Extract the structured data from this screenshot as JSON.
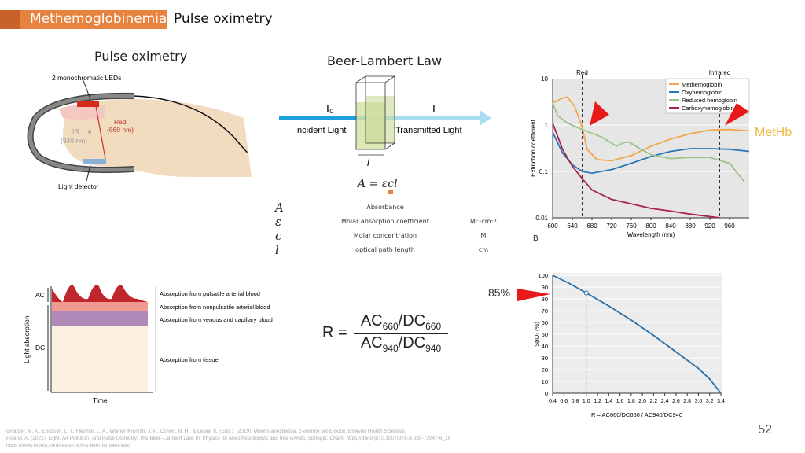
{
  "header": {
    "title": "Methemoglobinemia",
    "subtitle": "Pulse oximetry"
  },
  "pulse_ox": {
    "title": "Pulse oximetry",
    "leds_label": "2 monochromatic LEDs",
    "red_label": "Red",
    "red_nm": "(660 nm)",
    "ir_label": "IR",
    "ir_nm": "(940 nm)",
    "detector_label": "Light detector"
  },
  "beer_lambert": {
    "title": "Beer-Lambert Law",
    "i0": "I₀",
    "i": "I",
    "incident": "Incident Light",
    "transmitted": "Transmitted Light",
    "path": "l",
    "formula": "A = εcl",
    "table": [
      {
        "sym": "A",
        "desc": "Absorbance",
        "unit": ""
      },
      {
        "sym": "ε",
        "desc": "Molar absorption coefficient",
        "unit": "M⁻¹cm⁻¹"
      },
      {
        "sym": "c",
        "desc": "Molar concentration",
        "unit": "M"
      },
      {
        "sym": "l",
        "desc": "optical path length",
        "unit": "cm"
      }
    ]
  },
  "absorption": {
    "ac": "AC",
    "dc": "DC",
    "ylabel": "Light absorption",
    "xlabel": "Time",
    "layers": [
      "Absorption from pulsatile arterial blood",
      "Absorption from nonpulsatile arterial blood",
      "Absorption from venous and capillary blood",
      "Absorption from tissue"
    ]
  },
  "r_formula": {
    "r": "R =",
    "num": "AC",
    "num_sub": "660",
    "num2": "/DC",
    "num2_sub": "660",
    "den": "AC",
    "den_sub": "940",
    "den2": "/DC",
    "den2_sub": "940"
  },
  "annotations": {
    "methb": "MetHb",
    "pct": "85%",
    "panel": "B",
    "colors": {
      "accent": "#e8823f",
      "arrow": "#e8191a",
      "methb": "#f0b63c"
    }
  },
  "references": [
    "Gropper, M. A., Eriksson, L. I., Fleisher, L. A., Wiener-Kronish, J. P., Cohen, N. H., & Leslie, K. (Eds.). (2019). Miller's anesthesia, 2-volume set E-book. Elsevier Health Sciences.",
    "Pisano, A. (2021). Light, Air Pollution, and Pulse Oximetry: The Beer–Lambert Law. In: Physics for Anesthesiologists and Intensivists. Springer, Cham. https://doi.org/10.1007/978-3-030-72047-6_16",
    "https://www.edinst.com/resource/the-beer-lambert-law/"
  ],
  "page_number": "52",
  "chart_data": [
    {
      "type": "line",
      "title": "",
      "xlabel": "Wavelength (nm)",
      "ylabel": "Extinction coefficient",
      "yscale": "log",
      "xlim": [
        600,
        1000
      ],
      "ylim": [
        0.01,
        10
      ],
      "xticks": [
        "600",
        "640",
        "680",
        "720",
        "760",
        "800",
        "840",
        "880",
        "920",
        "960"
      ],
      "yticks": [
        "0.01",
        "0.1",
        "1",
        "10"
      ],
      "vlines": [
        {
          "x": 660,
          "label": "Red"
        },
        {
          "x": 940,
          "label": "Infrared"
        }
      ],
      "legend_position": "top-right",
      "series": [
        {
          "name": "Methemoglobin",
          "color": "#f0a848",
          "x": [
            600,
            620,
            630,
            645,
            660,
            670,
            690,
            720,
            760,
            800,
            840,
            880,
            920,
            960,
            1000
          ],
          "y": [
            3,
            3.8,
            4,
            2.5,
            0.9,
            0.3,
            0.18,
            0.17,
            0.22,
            0.35,
            0.5,
            0.65,
            0.78,
            0.8,
            0.75
          ]
        },
        {
          "name": "Oxyhemoglobin",
          "color": "#2a78b8",
          "x": [
            600,
            620,
            640,
            660,
            680,
            720,
            760,
            800,
            840,
            880,
            920,
            960,
            1000
          ],
          "y": [
            0.7,
            0.25,
            0.14,
            0.1,
            0.092,
            0.11,
            0.15,
            0.21,
            0.27,
            0.31,
            0.31,
            0.3,
            0.27
          ]
        },
        {
          "name": "Reduced hemoglobin",
          "color": "#9cc48a",
          "x": [
            600,
            610,
            630,
            660,
            700,
            730,
            745,
            755,
            780,
            800,
            840,
            880,
            920,
            960,
            990
          ],
          "y": [
            3,
            1.6,
            1.1,
            0.8,
            0.55,
            0.35,
            0.42,
            0.43,
            0.3,
            0.23,
            0.19,
            0.2,
            0.2,
            0.15,
            0.06
          ]
        },
        {
          "name": "Carboxyhemoglobin",
          "color": "#a8234a",
          "x": [
            600,
            620,
            640,
            660,
            680,
            720,
            760,
            800,
            840,
            880,
            940
          ],
          "y": [
            1.1,
            0.3,
            0.13,
            0.07,
            0.04,
            0.025,
            0.02,
            0.016,
            0.014,
            0.012,
            0.01
          ]
        }
      ]
    },
    {
      "type": "line",
      "title": "",
      "xlabel": "R = AC660/DC660 / AC940/DC940",
      "ylabel": "SpO₂ (%)",
      "xlim": [
        0.4,
        3.4
      ],
      "ylim": [
        0,
        100
      ],
      "xticks": [
        "0.4",
        "0.6",
        "0.8",
        "1.0",
        "1.2",
        "1.4",
        "1.6",
        "1.8",
        "2.0",
        "2.2",
        "2.4",
        "2.6",
        "2.8",
        "3.0",
        "3.2",
        "3.4"
      ],
      "yticks": [
        "0",
        "10",
        "20",
        "30",
        "40",
        "50",
        "60",
        "70",
        "80",
        "90",
        "100"
      ],
      "marker": {
        "x": 1.0,
        "y": 85
      },
      "series": [
        {
          "name": "SpO2 calibration",
          "color": "#2a6fa8",
          "x": [
            0.4,
            0.7,
            1.0,
            1.4,
            1.8,
            2.2,
            2.6,
            3.0,
            3.2,
            3.4
          ],
          "y": [
            100,
            93,
            85,
            74,
            62,
            49,
            35,
            21,
            12,
            0
          ]
        }
      ]
    }
  ]
}
